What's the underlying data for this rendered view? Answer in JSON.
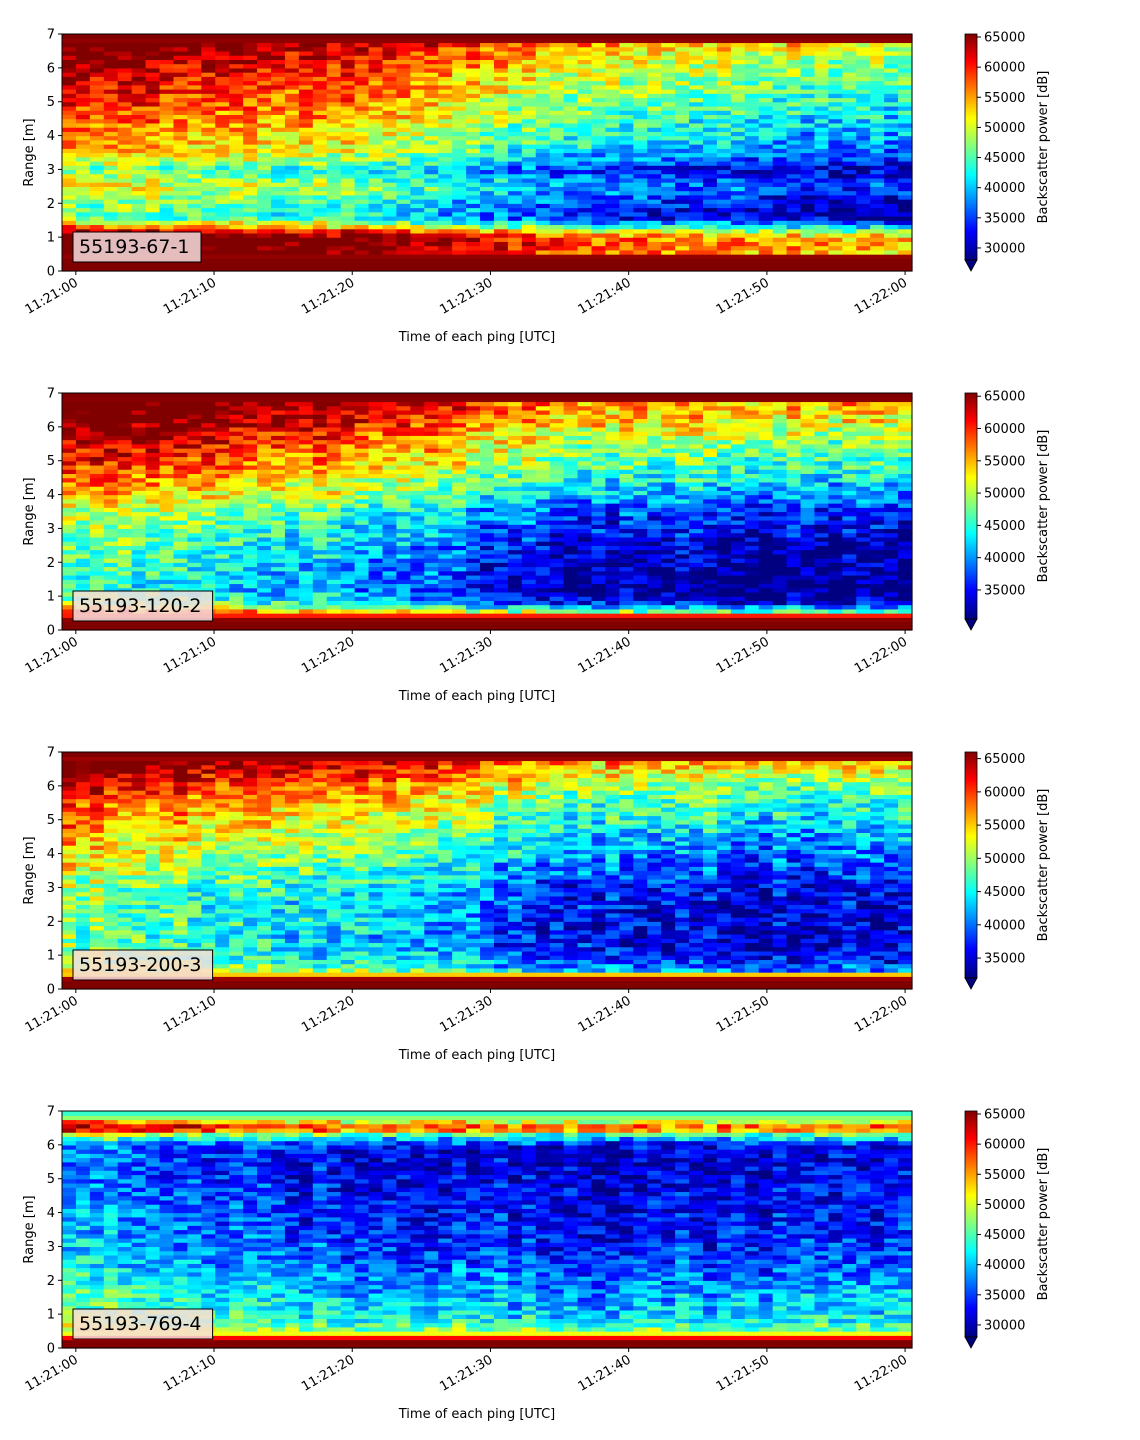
{
  "chart_data": [
    {
      "type": "heatmap",
      "panel_label": "55193-67-1",
      "xlabel": "Time of each ping [UTC]",
      "ylabel": "Range [m]",
      "x_ticks": [
        "11:21:00",
        "11:21:10",
        "11:21:20",
        "11:21:30",
        "11:21:40",
        "11:21:50",
        "11:22:00"
      ],
      "y_ticks": [
        "0",
        "1",
        "2",
        "3",
        "4",
        "5",
        "6",
        "7"
      ],
      "xlim": [
        "11:20:59",
        "11:22:00.5"
      ],
      "ylim": [
        0,
        7
      ],
      "colorbar_label": "Backscatter power [dB]",
      "colorbar_ticks": [
        "30000",
        "35000",
        "40000",
        "45000",
        "50000",
        "55000",
        "60000",
        "65000"
      ],
      "colorbar_range": [
        28000,
        65500
      ],
      "colorbar_extend": "min",
      "colormap": "jet",
      "range_profile_m": [
        {
          "y": 0.15,
          "value": 65500
        },
        {
          "y": 0.3,
          "value": 65500
        },
        {
          "y": 0.6,
          "value": 64000
        },
        {
          "y": 0.9,
          "value": 65500
        },
        {
          "y": 1.1,
          "value": 62000
        },
        {
          "y": 1.3,
          "value": 52000
        },
        {
          "y": 1.6,
          "value": 40000
        },
        {
          "y": 2.0,
          "value": 42000
        },
        {
          "y": 2.5,
          "value": 46000
        },
        {
          "y": 3.0,
          "value": 41000
        },
        {
          "y": 3.5,
          "value": 48000
        },
        {
          "y": 4.0,
          "value": 50000
        },
        {
          "y": 4.5,
          "value": 52000
        },
        {
          "y": 5.0,
          "value": 54000
        },
        {
          "y": 5.5,
          "value": 56000
        },
        {
          "y": 6.0,
          "value": 58000
        },
        {
          "y": 6.5,
          "value": 60000
        },
        {
          "y": 6.85,
          "value": 65500
        }
      ],
      "time_trend_s": [
        {
          "t": 0,
          "offset": 6000
        },
        {
          "t": 20,
          "offset": 2000
        },
        {
          "t": 35,
          "offset": -6000
        },
        {
          "t": 50,
          "offset": -10000
        },
        {
          "t": 60,
          "offset": -11000
        }
      ]
    },
    {
      "type": "heatmap",
      "panel_label": "55193-120-2",
      "xlabel": "Time of each ping [UTC]",
      "ylabel": "Range [m]",
      "x_ticks": [
        "11:21:00",
        "11:21:10",
        "11:21:20",
        "11:21:30",
        "11:21:40",
        "11:21:50",
        "11:22:00"
      ],
      "y_ticks": [
        "0",
        "1",
        "2",
        "3",
        "4",
        "5",
        "6",
        "7"
      ],
      "xlim": [
        "11:20:59",
        "11:22:00.5"
      ],
      "ylim": [
        0,
        7
      ],
      "colorbar_label": "Backscatter power [dB]",
      "colorbar_ticks": [
        "35000",
        "40000",
        "45000",
        "50000",
        "55000",
        "60000",
        "65000"
      ],
      "colorbar_range": [
        30500,
        65500
      ],
      "colorbar_extend": "min",
      "colormap": "jet",
      "range_profile_m": [
        {
          "y": 0.1,
          "value": 65500
        },
        {
          "y": 0.3,
          "value": 65500
        },
        {
          "y": 0.55,
          "value": 56000
        },
        {
          "y": 0.8,
          "value": 44000
        },
        {
          "y": 1.2,
          "value": 40000
        },
        {
          "y": 1.8,
          "value": 41000
        },
        {
          "y": 2.3,
          "value": 42000
        },
        {
          "y": 3.0,
          "value": 44000
        },
        {
          "y": 3.5,
          "value": 46000
        },
        {
          "y": 4.0,
          "value": 50000
        },
        {
          "y": 4.5,
          "value": 53000
        },
        {
          "y": 5.0,
          "value": 56000
        },
        {
          "y": 5.5,
          "value": 58000
        },
        {
          "y": 6.0,
          "value": 61000
        },
        {
          "y": 6.5,
          "value": 64000
        },
        {
          "y": 6.9,
          "value": 65500
        }
      ],
      "time_trend_s": [
        {
          "t": 0,
          "offset": 5000
        },
        {
          "t": 20,
          "offset": 0
        },
        {
          "t": 35,
          "offset": -8000
        },
        {
          "t": 50,
          "offset": -10000
        },
        {
          "t": 60,
          "offset": -10000
        }
      ]
    },
    {
      "type": "heatmap",
      "panel_label": "55193-200-3",
      "xlabel": "Time of each ping [UTC]",
      "ylabel": "Range [m]",
      "x_ticks": [
        "11:21:00",
        "11:21:10",
        "11:21:20",
        "11:21:30",
        "11:21:40",
        "11:21:50",
        "11:22:00"
      ],
      "y_ticks": [
        "0",
        "1",
        "2",
        "3",
        "4",
        "5",
        "6",
        "7"
      ],
      "xlim": [
        "11:20:59",
        "11:22:00.5"
      ],
      "ylim": [
        0,
        7
      ],
      "colorbar_label": "Backscatter power [dB]",
      "colorbar_ticks": [
        "35000",
        "40000",
        "45000",
        "50000",
        "55000",
        "60000",
        "65000"
      ],
      "colorbar_range": [
        32000,
        66000
      ],
      "colorbar_extend": "min",
      "colormap": "jet",
      "range_profile_m": [
        {
          "y": 0.1,
          "value": 66000
        },
        {
          "y": 0.3,
          "value": 66000
        },
        {
          "y": 0.5,
          "value": 50000
        },
        {
          "y": 0.9,
          "value": 45000
        },
        {
          "y": 1.5,
          "value": 43000
        },
        {
          "y": 2.0,
          "value": 44000
        },
        {
          "y": 2.5,
          "value": 44000
        },
        {
          "y": 3.0,
          "value": 45000
        },
        {
          "y": 3.5,
          "value": 47000
        },
        {
          "y": 4.0,
          "value": 49000
        },
        {
          "y": 4.5,
          "value": 51000
        },
        {
          "y": 5.0,
          "value": 53000
        },
        {
          "y": 5.5,
          "value": 55000
        },
        {
          "y": 6.0,
          "value": 58000
        },
        {
          "y": 6.5,
          "value": 62000
        },
        {
          "y": 6.9,
          "value": 66000
        }
      ],
      "time_trend_s": [
        {
          "t": 0,
          "offset": 5000
        },
        {
          "t": 20,
          "offset": 0
        },
        {
          "t": 35,
          "offset": -7000
        },
        {
          "t": 50,
          "offset": -9000
        },
        {
          "t": 60,
          "offset": -9000
        }
      ]
    },
    {
      "type": "heatmap",
      "panel_label": "55193-769-4",
      "xlabel": "Time of each ping [UTC]",
      "ylabel": "Range [m]",
      "x_ticks": [
        "11:21:00",
        "11:21:10",
        "11:21:20",
        "11:21:30",
        "11:21:40",
        "11:21:50",
        "11:22:00"
      ],
      "y_ticks": [
        "0",
        "1",
        "2",
        "3",
        "4",
        "5",
        "6",
        "7"
      ],
      "xlim": [
        "11:20:59",
        "11:22:00.5"
      ],
      "ylim": [
        0,
        7
      ],
      "colorbar_label": "Backscatter power [dB]",
      "colorbar_ticks": [
        "30000",
        "35000",
        "40000",
        "45000",
        "50000",
        "55000",
        "60000",
        "65000"
      ],
      "colorbar_range": [
        28000,
        65500
      ],
      "colorbar_extend": "min",
      "colormap": "jet",
      "range_profile_m": [
        {
          "y": 0.1,
          "value": 65500
        },
        {
          "y": 0.25,
          "value": 65500
        },
        {
          "y": 0.45,
          "value": 50000
        },
        {
          "y": 0.8,
          "value": 44000
        },
        {
          "y": 1.2,
          "value": 42000
        },
        {
          "y": 1.8,
          "value": 40000
        },
        {
          "y": 2.5,
          "value": 37000
        },
        {
          "y": 3.5,
          "value": 35000
        },
        {
          "y": 4.5,
          "value": 34000
        },
        {
          "y": 5.5,
          "value": 33000
        },
        {
          "y": 6.0,
          "value": 34000
        },
        {
          "y": 6.3,
          "value": 45000
        },
        {
          "y": 6.5,
          "value": 62000
        },
        {
          "y": 6.7,
          "value": 52000
        },
        {
          "y": 6.9,
          "value": 44000
        }
      ],
      "time_trend_s": [
        {
          "t": 0,
          "offset": 4000
        },
        {
          "t": 20,
          "offset": -1000
        },
        {
          "t": 40,
          "offset": -2000
        },
        {
          "t": 60,
          "offset": -1000
        }
      ]
    }
  ]
}
